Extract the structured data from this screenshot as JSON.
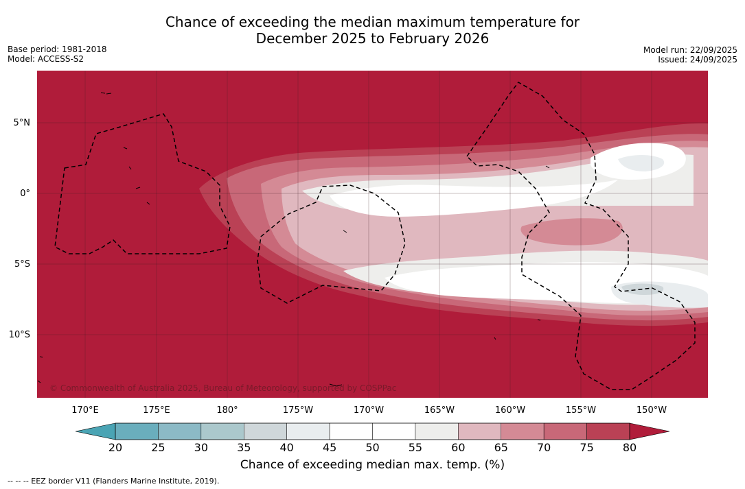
{
  "title_line1": "Chance of exceeding the median maximum temperature for",
  "title_line2": "December 2025 to February 2026",
  "base_period": "Base period: 1981-2018",
  "model": "Model: ACCESS-S2",
  "model_run": "Model run: 22/09/2025",
  "issued": "Issued: 24/09/2025",
  "copyright": "© Commonwealth of Australia 2025, Bureau of Meteorology, supported by COSPPac",
  "lat_labels": [
    "5°N",
    "0°",
    "5°S",
    "10°S"
  ],
  "lon_labels": [
    "170°E",
    "175°E",
    "180°",
    "175°W",
    "170°W",
    "165°W",
    "160°W",
    "155°W",
    "150°W"
  ],
  "colorbar": {
    "ticks": [
      "20",
      "25",
      "30",
      "35",
      "40",
      "45",
      "50",
      "55",
      "60",
      "65",
      "70",
      "75",
      "80"
    ],
    "colors": [
      "#6aaebd",
      "#8cbac6",
      "#abc8cc",
      "#cfd7da",
      "#e9edef",
      "#ffffff",
      "#ffffff",
      "#eeeeec",
      "#e0b8bf",
      "#d48a95",
      "#c86878",
      "#ba4155"
    ],
    "under_color": "#4aa4b4",
    "over_color": "#b01c3a",
    "title": "Chance of exceeding median max. temp. (%)"
  },
  "footnote": "--  --  -- EEZ border V11 (Flanders Marine Institute, 2019)."
}
